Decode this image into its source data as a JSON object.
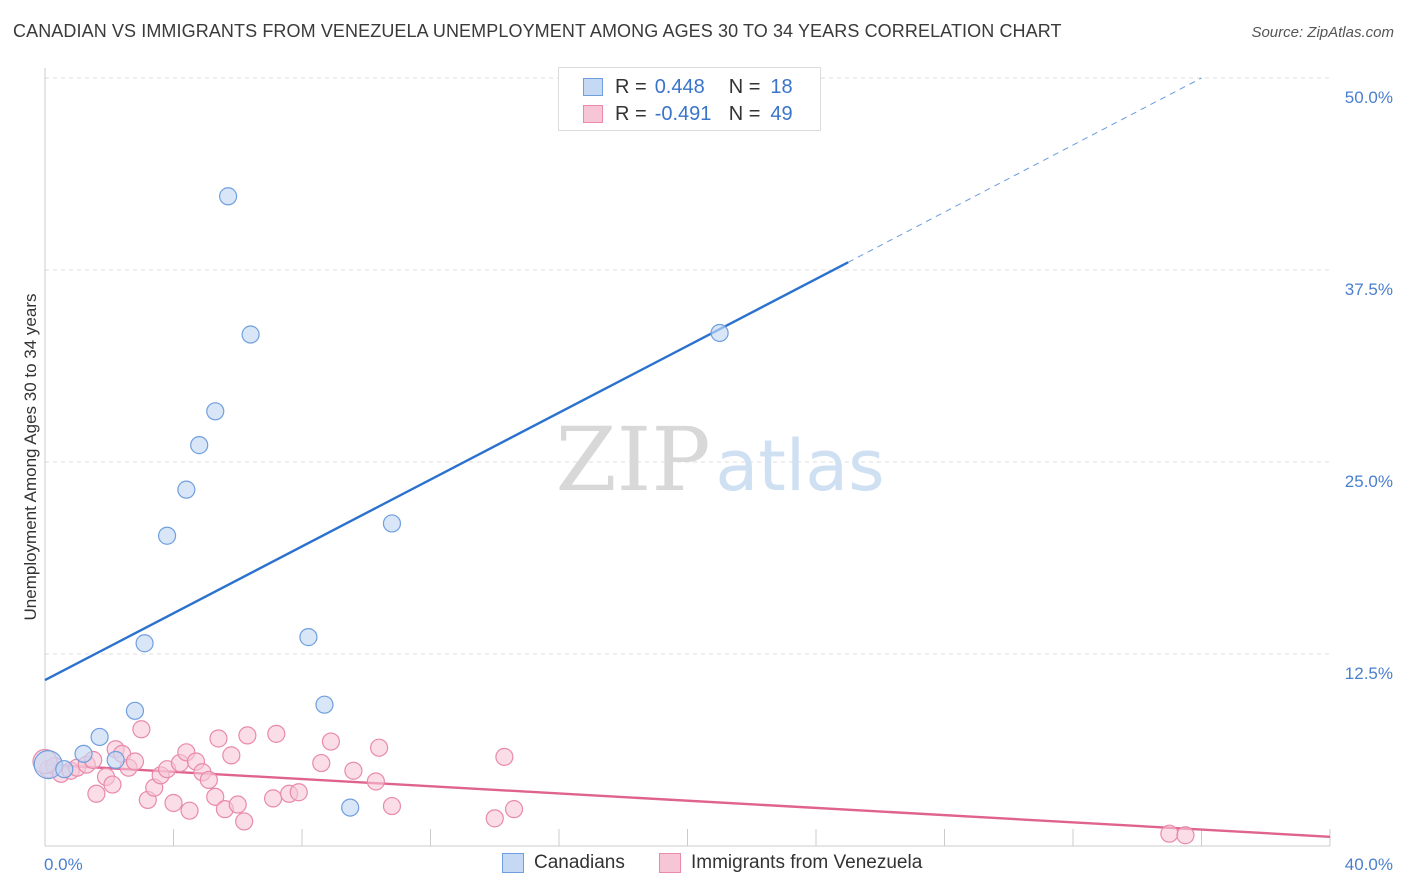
{
  "title": "CANADIAN VS IMMIGRANTS FROM VENEZUELA UNEMPLOYMENT AMONG AGES 30 TO 34 YEARS CORRELATION CHART",
  "source": "Source: ZipAtlas.com",
  "watermark": {
    "zip": "ZIP",
    "atlas": "atlas"
  },
  "colors": {
    "canadians_fill": "#c5d9f5",
    "canadians_stroke": "#6f9fde",
    "canadians_line": "#2b72cf",
    "venezuela_fill": "#f7c6d6",
    "venezuela_stroke": "#e98aab",
    "venezuela_line": "#e0628f"
  },
  "legend": {
    "canadians": {
      "r_label": "R =",
      "r_value": "0.448",
      "n_label": "N =",
      "n_value": "18"
    },
    "venezuela": {
      "r_label": "R =",
      "r_value": "-0.491",
      "n_label": "N =",
      "n_value": "49"
    }
  },
  "chart_data": {
    "type": "scatter",
    "ylabel": "Unemployment Among Ages 30 to 34 years",
    "xlim": [
      0,
      40
    ],
    "ylim": [
      0,
      50
    ],
    "x_tick_labels": [
      "0.0%",
      "40.0%"
    ],
    "y_ticks": [
      12.5,
      25.0,
      37.5,
      50.0
    ],
    "y_tick_labels": [
      "12.5%",
      "25.0%",
      "37.5%",
      "50.0%"
    ],
    "grid": "horizontal dashed",
    "legend_position": "bottom",
    "series": [
      {
        "name": "Canadians",
        "points": [
          [
            0.1,
            5.3
          ],
          [
            0.6,
            5.0
          ],
          [
            1.2,
            6.0
          ],
          [
            1.7,
            7.1
          ],
          [
            2.2,
            5.6
          ],
          [
            2.8,
            8.8
          ],
          [
            3.1,
            13.2
          ],
          [
            3.8,
            20.2
          ],
          [
            4.4,
            23.2
          ],
          [
            4.8,
            26.1
          ],
          [
            5.3,
            28.3
          ],
          [
            5.7,
            42.3
          ],
          [
            6.4,
            33.3
          ],
          [
            8.2,
            13.6
          ],
          [
            8.7,
            9.2
          ],
          [
            9.5,
            2.5
          ],
          [
            10.8,
            21.0
          ],
          [
            21.0,
            33.4
          ]
        ],
        "trend": {
          "x": [
            0,
            25
          ],
          "y": [
            10.8,
            38.0
          ],
          "dashed_extension_to": [
            36.0,
            50.0
          ]
        }
      },
      {
        "name": "Immigrants from Venezuela",
        "points": [
          [
            0.1,
            5.0
          ],
          [
            0.3,
            5.2
          ],
          [
            0.5,
            4.7
          ],
          [
            0.8,
            4.9
          ],
          [
            1.0,
            5.1
          ],
          [
            1.3,
            5.3
          ],
          [
            1.5,
            5.6
          ],
          [
            1.6,
            3.4
          ],
          [
            1.9,
            4.5
          ],
          [
            2.1,
            4.0
          ],
          [
            2.2,
            6.3
          ],
          [
            2.4,
            6.0
          ],
          [
            2.6,
            5.1
          ],
          [
            2.8,
            5.5
          ],
          [
            3.0,
            7.6
          ],
          [
            3.2,
            3.0
          ],
          [
            3.4,
            3.8
          ],
          [
            3.6,
            4.6
          ],
          [
            3.8,
            5.0
          ],
          [
            4.0,
            2.8
          ],
          [
            4.2,
            5.4
          ],
          [
            4.4,
            6.1
          ],
          [
            4.5,
            2.3
          ],
          [
            4.7,
            5.5
          ],
          [
            4.9,
            4.8
          ],
          [
            5.1,
            4.3
          ],
          [
            5.3,
            3.2
          ],
          [
            5.4,
            7.0
          ],
          [
            5.6,
            2.4
          ],
          [
            5.8,
            5.9
          ],
          [
            6.0,
            2.7
          ],
          [
            6.2,
            1.6
          ],
          [
            6.3,
            7.2
          ],
          [
            7.1,
            3.1
          ],
          [
            7.2,
            7.3
          ],
          [
            7.6,
            3.4
          ],
          [
            7.9,
            3.5
          ],
          [
            8.6,
            5.4
          ],
          [
            8.9,
            6.8
          ],
          [
            9.6,
            4.9
          ],
          [
            10.3,
            4.2
          ],
          [
            10.4,
            6.4
          ],
          [
            10.8,
            2.6
          ],
          [
            14.0,
            1.8
          ],
          [
            14.3,
            5.8
          ],
          [
            14.6,
            2.4
          ],
          [
            35.0,
            0.8
          ],
          [
            35.5,
            0.7
          ],
          [
            0.0,
            5.5
          ]
        ],
        "trend": {
          "x": [
            0,
            40
          ],
          "y": [
            5.3,
            0.6
          ]
        }
      }
    ]
  }
}
